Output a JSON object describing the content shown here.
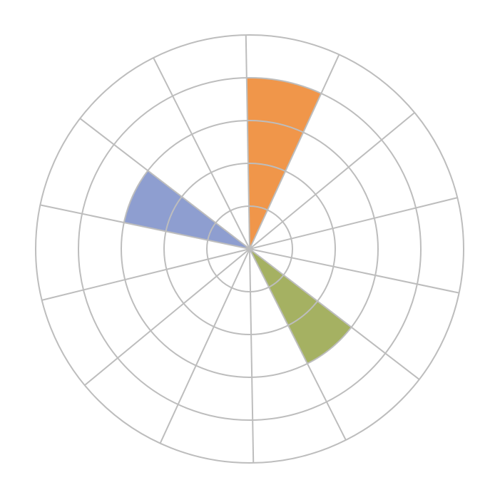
{
  "chart_data": {
    "type": "polar-area",
    "title": "",
    "sector_count": 14,
    "start_angle_deg": -1,
    "direction": "clockwise",
    "rlim": [
      0,
      5
    ],
    "ring_values": [
      1,
      2,
      3,
      4,
      5
    ],
    "grid": true,
    "values": [
      4,
      0,
      0,
      0,
      0,
      3,
      0,
      0,
      0,
      0,
      0,
      3,
      0,
      0
    ],
    "colors": [
      "#F0964A",
      null,
      null,
      null,
      null,
      "#A5B162",
      null,
      null,
      null,
      null,
      null,
      "#8E9ED0",
      null,
      null
    ],
    "grid_color": "#BDBDBD",
    "legend": "none"
  }
}
